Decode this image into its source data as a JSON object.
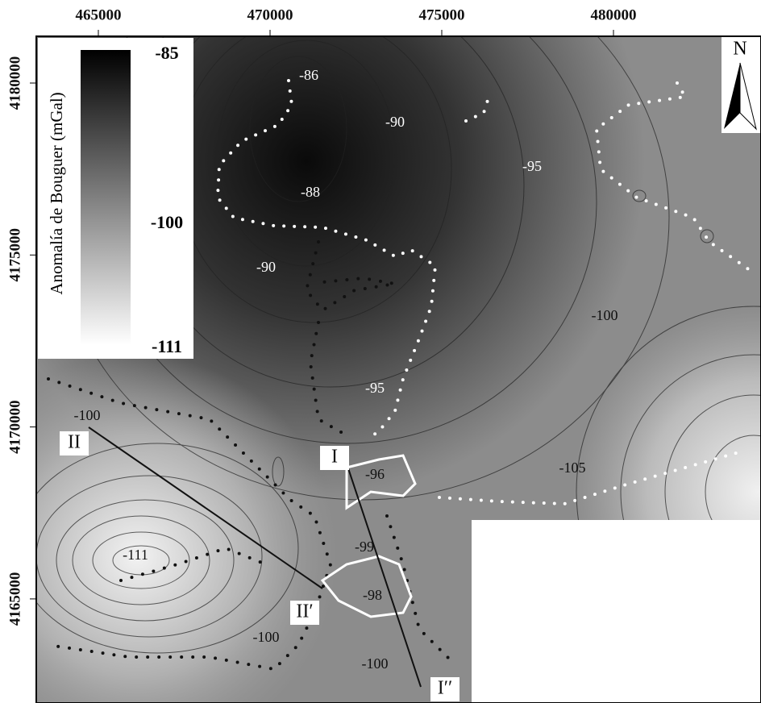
{
  "x_axis": {
    "ticks": [
      465000,
      470000,
      475000,
      480000
    ]
  },
  "y_axis": {
    "ticks": [
      4180000,
      4175000,
      4170000,
      4165000
    ]
  },
  "legend": {
    "title": "Anomalía de Bouguer (mGal)",
    "max": -85,
    "mid": -100,
    "min": -111
  },
  "north": "N",
  "contour_labels": [
    -86,
    -90,
    -95,
    -88,
    -90,
    -100,
    -95,
    -100,
    -96,
    -105,
    -111,
    -99,
    -98,
    -100,
    -100
  ],
  "profile_labels": [
    "I",
    "I′′",
    "II",
    "II′"
  ]
}
